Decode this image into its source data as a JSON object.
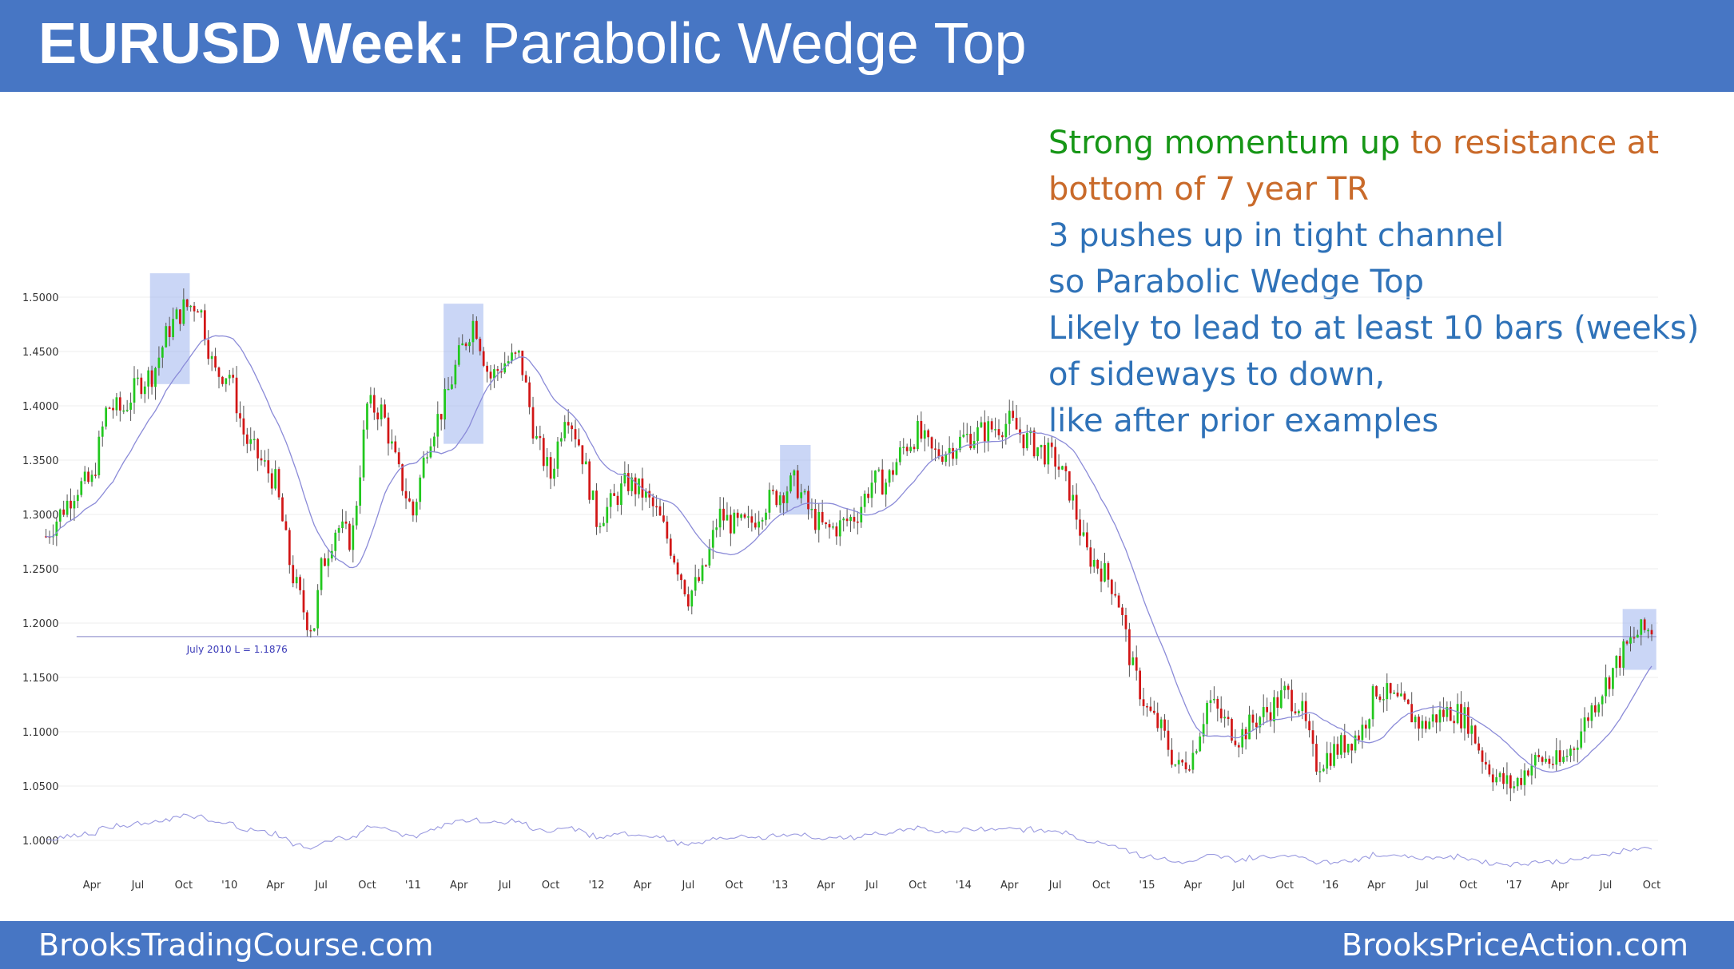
{
  "header": {
    "title_bold": "EURUSD Week:",
    "title_rest": " Parabolic Wedge Top"
  },
  "footer": {
    "left": "BrooksTradingCourse.com",
    "right": "BrooksPriceAction.com"
  },
  "notes": {
    "line1_green": "Strong momentum up",
    "line1_orange": " to resistance at",
    "line2_orange": "bottom of 7 year TR",
    "line3": "3 pushes up in tight channel",
    "line4": "so Parabolic Wedge Top",
    "line5": "Likely to lead to at least 10 bars (weeks)",
    "line6": "of sideways to down,",
    "line7": "like after prior examples"
  },
  "colors": {
    "bull": "#22c81e",
    "bear": "#d21616",
    "ma": "#8b8bd8",
    "highlight": "#9fb4ee",
    "header": "#4776c4"
  },
  "chart_data": {
    "type": "candlestick",
    "title": "",
    "xlabel": "",
    "ylabel": "",
    "ylim": [
      0.97,
      1.52
    ],
    "y_ticks": [
      "1.5000",
      "1.4500",
      "1.4000",
      "1.3500",
      "1.3000",
      "1.2500",
      "1.2000",
      "1.1500",
      "1.1000",
      "1.0500",
      "1.0000"
    ],
    "x_ticks": [
      "Apr",
      "Jul",
      "Oct",
      "'10",
      "Apr",
      "Jul",
      "Oct",
      "'11",
      "Apr",
      "Jul",
      "Oct",
      "'12",
      "Apr",
      "Jul",
      "Oct",
      "'13",
      "Apr",
      "Jul",
      "Oct",
      "'14",
      "Apr",
      "Jul",
      "Oct",
      "'15",
      "Apr",
      "Jul",
      "Oct",
      "'16",
      "Apr",
      "Jul",
      "Oct",
      "'17",
      "Apr",
      "Jul",
      "Oct"
    ],
    "x_ticks_month": [
      4,
      7,
      10,
      13,
      16,
      19,
      22,
      25,
      28,
      31,
      34,
      37,
      40,
      43,
      46,
      49,
      52,
      55,
      58,
      61,
      64,
      67,
      70,
      73,
      76,
      79,
      82,
      85,
      88,
      91,
      94,
      97,
      100,
      103,
      106
    ],
    "month_start": 1,
    "support_line": {
      "value": 1.1876,
      "label": "July 2010 L = 1.1876"
    },
    "highlight_zones": [
      {
        "from_month": 7.8,
        "to_month": 10.4,
        "low": 1.42,
        "high": 1.522
      },
      {
        "from_month": 27.0,
        "to_month": 29.6,
        "low": 1.365,
        "high": 1.494
      },
      {
        "from_month": 49.0,
        "to_month": 51.0,
        "low": 1.3,
        "high": 1.364
      },
      {
        "from_month": 104.1,
        "to_month": 106.3,
        "low": 1.157,
        "high": 1.213
      }
    ],
    "price_path": [
      [
        1,
        1.28
      ],
      [
        3,
        1.325
      ],
      [
        4,
        1.33
      ],
      [
        5,
        1.4
      ],
      [
        6,
        1.395
      ],
      [
        7,
        1.42
      ],
      [
        8,
        1.43
      ],
      [
        9,
        1.47
      ],
      [
        10,
        1.49
      ],
      [
        11,
        1.495
      ],
      [
        12,
        1.43
      ],
      [
        13,
        1.43
      ],
      [
        14,
        1.37
      ],
      [
        15,
        1.35
      ],
      [
        16,
        1.33
      ],
      [
        17,
        1.25
      ],
      [
        18,
        1.205
      ],
      [
        18.5,
        1.195
      ],
      [
        19,
        1.25
      ],
      [
        20,
        1.29
      ],
      [
        21,
        1.275
      ],
      [
        22,
        1.4
      ],
      [
        23,
        1.395
      ],
      [
        24,
        1.34
      ],
      [
        25,
        1.3
      ],
      [
        26,
        1.37
      ],
      [
        27,
        1.4
      ],
      [
        28,
        1.445
      ],
      [
        29,
        1.48
      ],
      [
        30,
        1.425
      ],
      [
        31,
        1.44
      ],
      [
        32,
        1.445
      ],
      [
        33,
        1.37
      ],
      [
        34,
        1.335
      ],
      [
        35,
        1.4
      ],
      [
        36,
        1.36
      ],
      [
        37,
        1.295
      ],
      [
        38,
        1.31
      ],
      [
        39,
        1.33
      ],
      [
        40,
        1.32
      ],
      [
        41,
        1.3
      ],
      [
        42,
        1.265
      ],
      [
        43,
        1.225
      ],
      [
        44,
        1.245
      ],
      [
        45,
        1.3
      ],
      [
        46,
        1.29
      ],
      [
        47,
        1.29
      ],
      [
        48,
        1.31
      ],
      [
        49,
        1.32
      ],
      [
        50,
        1.33
      ],
      [
        51,
        1.3
      ],
      [
        52,
        1.285
      ],
      [
        53,
        1.29
      ],
      [
        54,
        1.3
      ],
      [
        55,
        1.33
      ],
      [
        56,
        1.33
      ],
      [
        57,
        1.36
      ],
      [
        58,
        1.375
      ],
      [
        59,
        1.355
      ],
      [
        60,
        1.36
      ],
      [
        61,
        1.37
      ],
      [
        62,
        1.375
      ],
      [
        63,
        1.38
      ],
      [
        64,
        1.385
      ],
      [
        65,
        1.37
      ],
      [
        66,
        1.36
      ],
      [
        67,
        1.35
      ],
      [
        68,
        1.32
      ],
      [
        69,
        1.265
      ],
      [
        70,
        1.25
      ],
      [
        71,
        1.23
      ],
      [
        72,
        1.16
      ],
      [
        73,
        1.12
      ],
      [
        74,
        1.1
      ],
      [
        75,
        1.065
      ],
      [
        76,
        1.08
      ],
      [
        77,
        1.13
      ],
      [
        78,
        1.11
      ],
      [
        79,
        1.095
      ],
      [
        80,
        1.11
      ],
      [
        81,
        1.12
      ],
      [
        82,
        1.135
      ],
      [
        83,
        1.125
      ],
      [
        84,
        1.07
      ],
      [
        85,
        1.08
      ],
      [
        86,
        1.09
      ],
      [
        87,
        1.1
      ],
      [
        88,
        1.14
      ],
      [
        89,
        1.13
      ],
      [
        90,
        1.12
      ],
      [
        91,
        1.105
      ],
      [
        92,
        1.115
      ],
      [
        93,
        1.12
      ],
      [
        94,
        1.11
      ],
      [
        95,
        1.075
      ],
      [
        96,
        1.055
      ],
      [
        97,
        1.05
      ],
      [
        98,
        1.07
      ],
      [
        99,
        1.075
      ],
      [
        100,
        1.07
      ],
      [
        101,
        1.09
      ],
      [
        102,
        1.12
      ],
      [
        103,
        1.145
      ],
      [
        104,
        1.17
      ],
      [
        105,
        1.19
      ],
      [
        106,
        1.195
      ]
    ],
    "lower_indicator": {
      "baseline": 1.0,
      "note": "relative strength line, unlabeled"
    }
  }
}
